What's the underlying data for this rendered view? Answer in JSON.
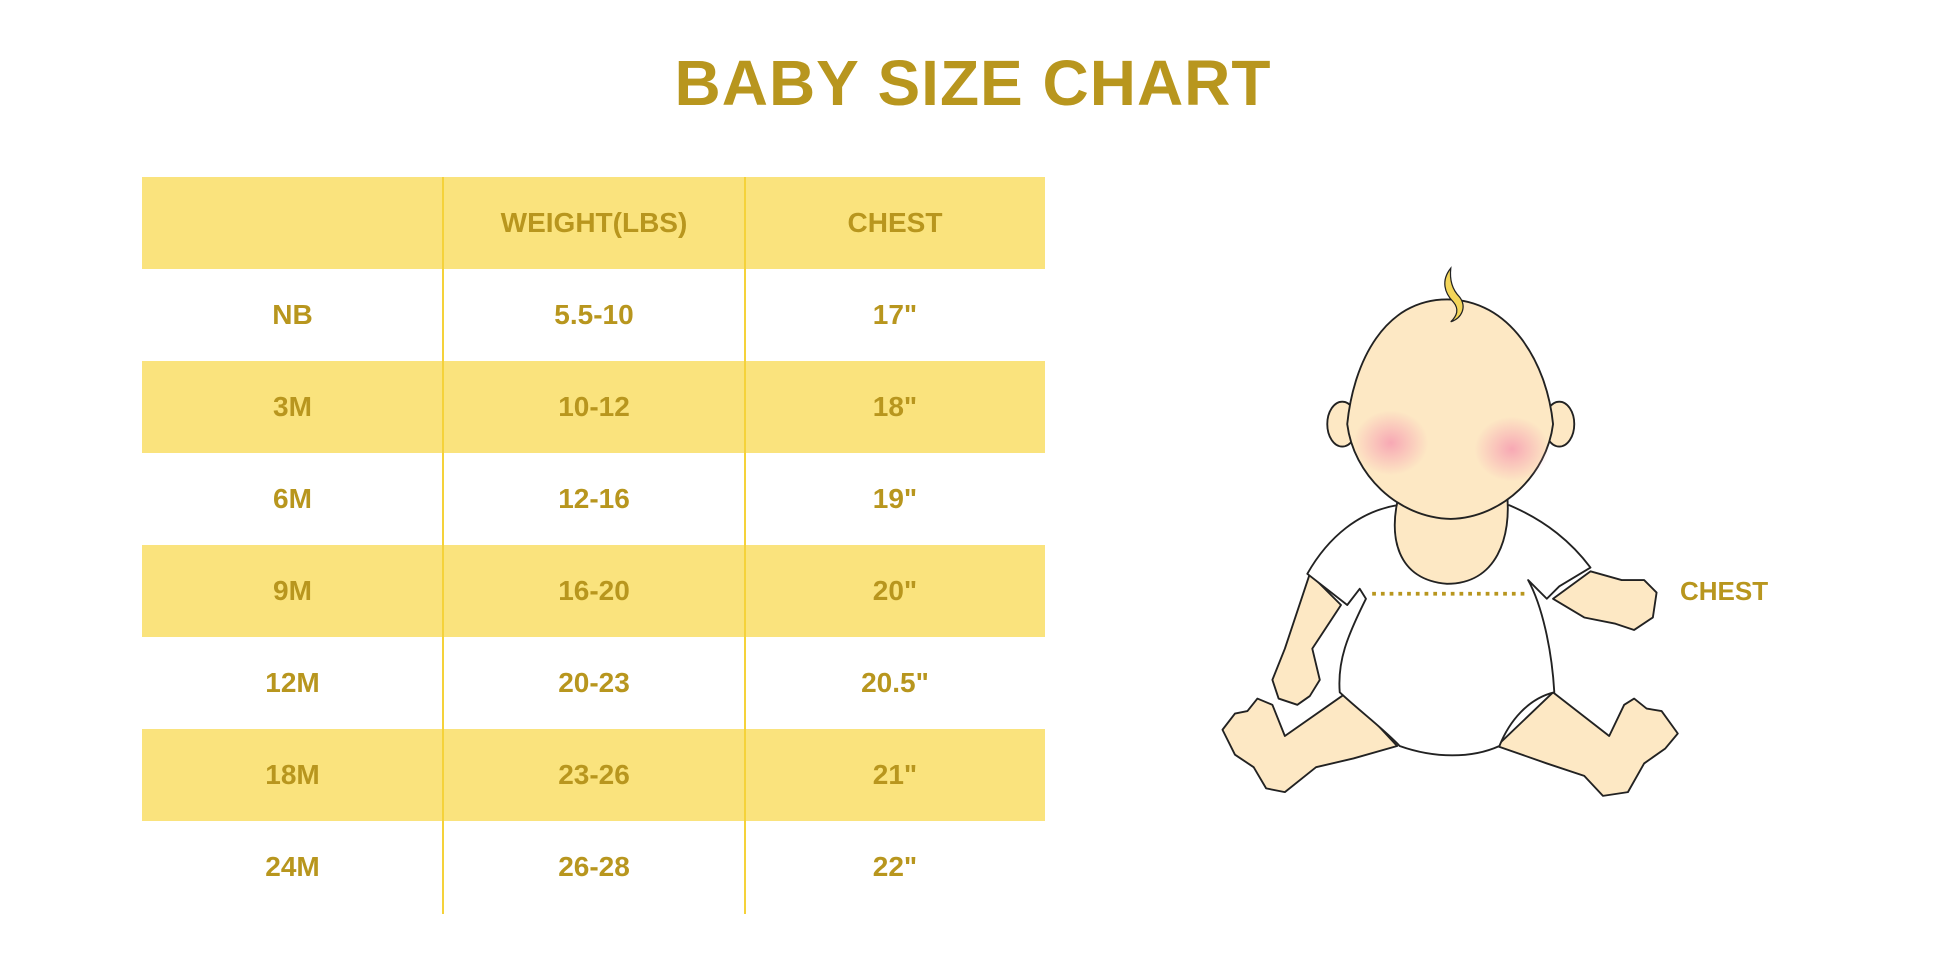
{
  "title": "BABY SIZE CHART",
  "colors": {
    "text": "#b8961e",
    "band": "#fae37d",
    "divider": "#f5d23a",
    "skin": "#fde8c4",
    "cheek": "#f7a8b4"
  },
  "table": {
    "headers": [
      "",
      "WEIGHT(LBS)",
      "CHEST"
    ],
    "rows": [
      [
        "NB",
        "5.5-10",
        "17\""
      ],
      [
        "3M",
        "10-12",
        "18\""
      ],
      [
        "6M",
        "12-16",
        "19\""
      ],
      [
        "9M",
        "16-20",
        "20\""
      ],
      [
        "12M",
        "20-23",
        "20.5\""
      ],
      [
        "18M",
        "23-26",
        "21\""
      ],
      [
        "24M",
        "26-28",
        "22\""
      ]
    ]
  },
  "illustration": {
    "chest_label": "CHEST",
    "icon": "baby-measurement-illustration"
  }
}
